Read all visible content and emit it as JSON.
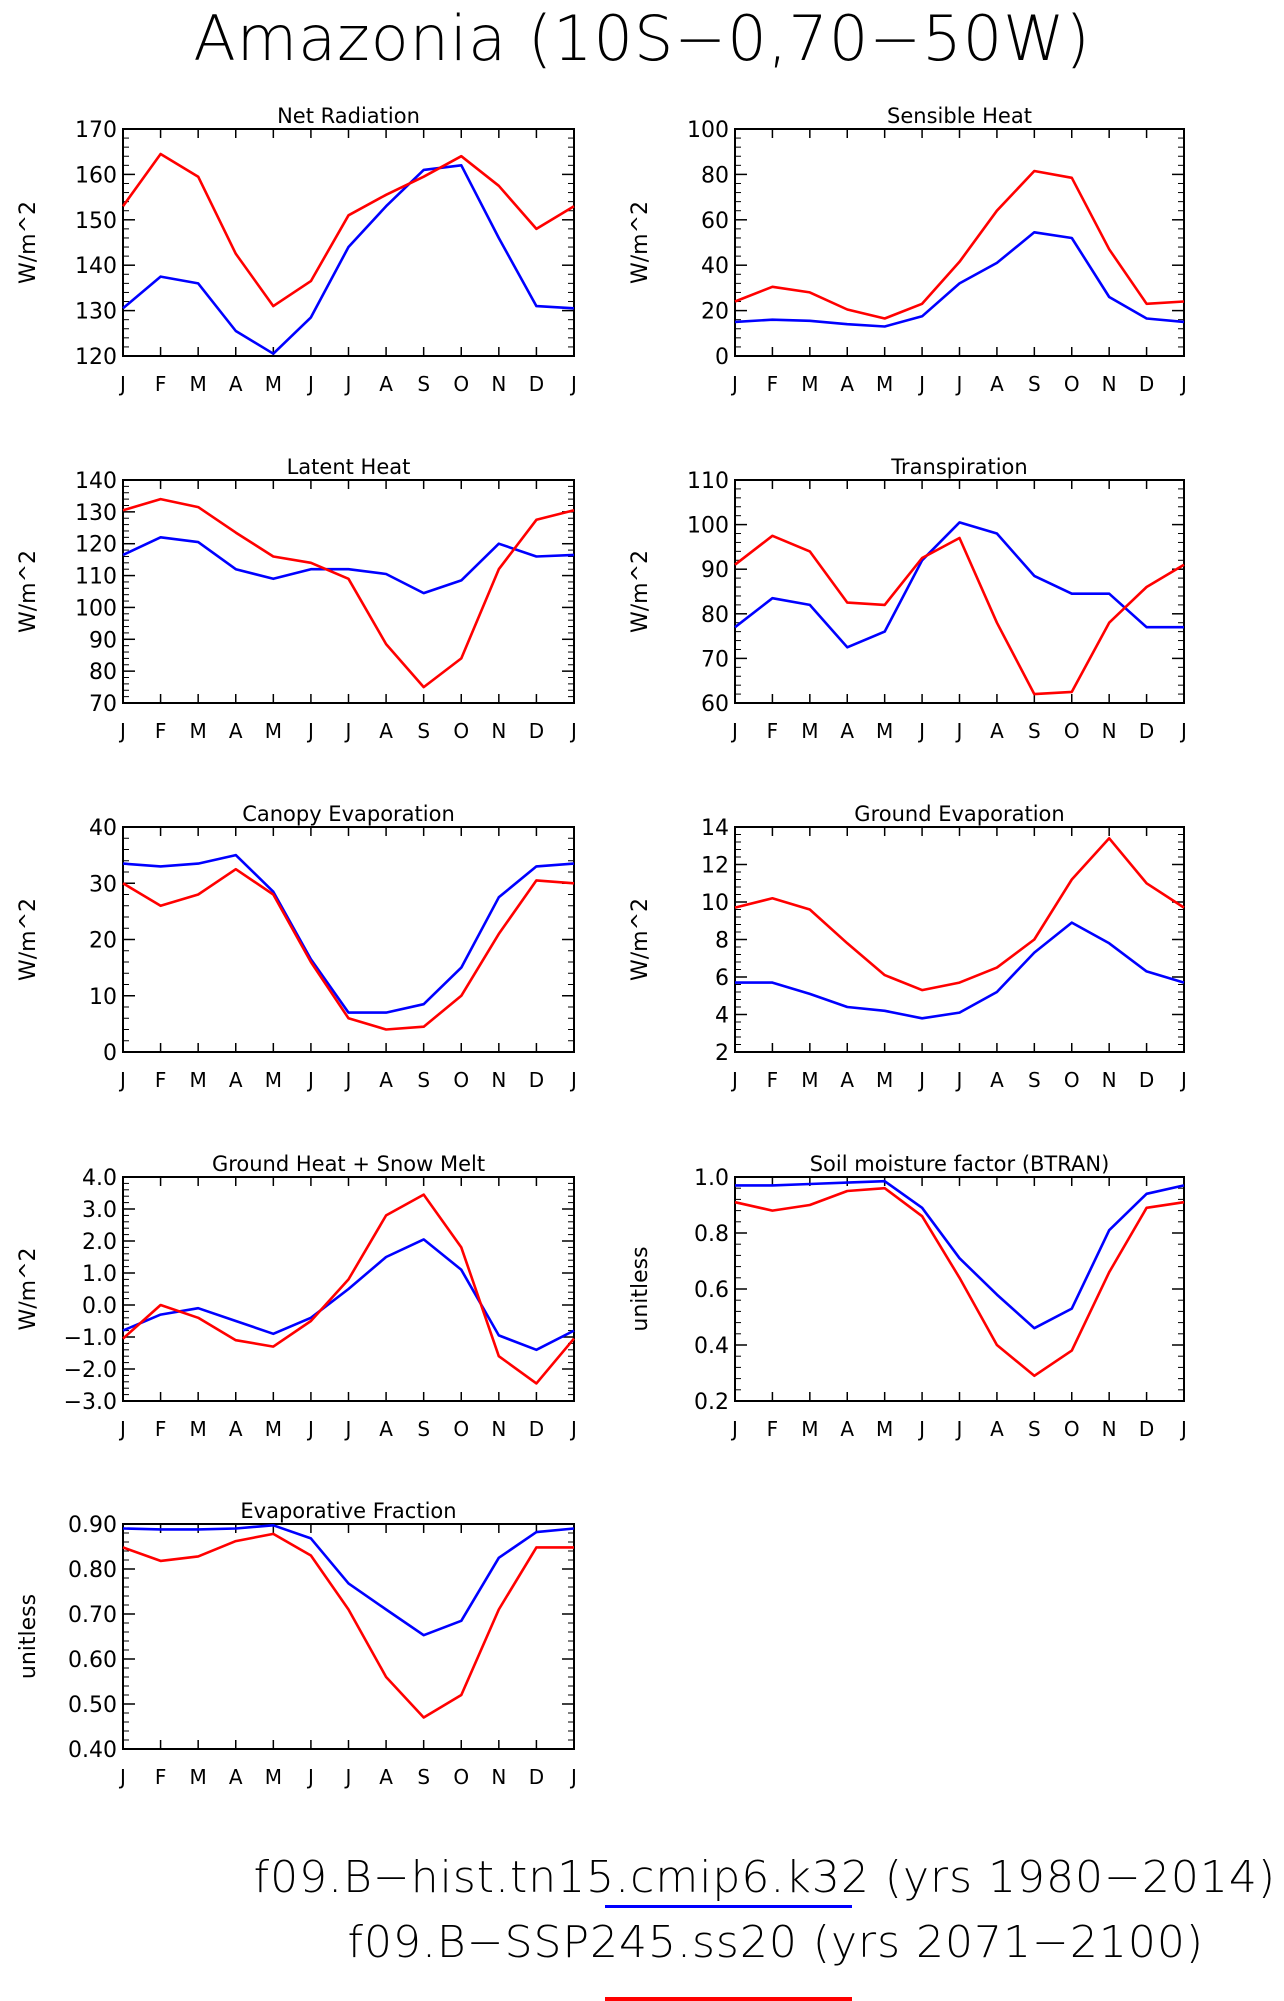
{
  "title": "Amazonia (10S−0,70−50W)",
  "legend": [
    {
      "label": "f09.B−hist.tn15.cmip6.k32 (yrs 1980−2014)",
      "color": "#0000ff"
    },
    {
      "label": "f09.B−SSP245.ss20 (yrs 2071−2100)",
      "color": "#ff0000"
    }
  ],
  "chart_data": [
    {
      "type": "line",
      "title": "Net Radiation",
      "ylabel": "W/m^2",
      "categories": [
        "J",
        "F",
        "M",
        "A",
        "M",
        "J",
        "J",
        "A",
        "S",
        "O",
        "N",
        "D",
        "J"
      ],
      "ylim": [
        120,
        170
      ],
      "yticks": [
        "120",
        "130",
        "140",
        "150",
        "160",
        "170"
      ],
      "series": [
        {
          "color": "#0000ff",
          "values": [
            130.5,
            137.5,
            136,
            125.5,
            120.5,
            128.5,
            144,
            153,
            161,
            162,
            146,
            131,
            130.5
          ]
        },
        {
          "color": "#ff0000",
          "values": [
            153,
            164.5,
            159.5,
            142.5,
            131,
            136.5,
            151,
            155.5,
            159.5,
            164,
            157.5,
            148,
            153
          ]
        }
      ]
    },
    {
      "type": "line",
      "title": "Sensible Heat",
      "ylabel": "W/m^2",
      "categories": [
        "J",
        "F",
        "M",
        "A",
        "M",
        "J",
        "J",
        "A",
        "S",
        "O",
        "N",
        "D",
        "J"
      ],
      "ylim": [
        0,
        100
      ],
      "yticks": [
        "0",
        "20",
        "40",
        "60",
        "80",
        "100"
      ],
      "series": [
        {
          "color": "#0000ff",
          "values": [
            15,
            16,
            15.5,
            14,
            13,
            17.5,
            32,
            41,
            54.5,
            52,
            26,
            16.5,
            15
          ]
        },
        {
          "color": "#ff0000",
          "values": [
            24,
            30.5,
            28,
            20.5,
            16.5,
            23,
            41.5,
            64,
            81.5,
            78.5,
            47,
            23,
            24
          ]
        }
      ]
    },
    {
      "type": "line",
      "title": "Latent Heat",
      "ylabel": "W/m^2",
      "categories": [
        "J",
        "F",
        "M",
        "A",
        "M",
        "J",
        "J",
        "A",
        "S",
        "O",
        "N",
        "D",
        "J"
      ],
      "ylim": [
        70,
        140
      ],
      "yticks": [
        "70",
        "80",
        "90",
        "100",
        "110",
        "120",
        "130",
        "140"
      ],
      "series": [
        {
          "color": "#0000ff",
          "values": [
            116.5,
            122,
            120.5,
            112,
            109,
            112,
            112,
            110.5,
            104.5,
            108.5,
            120,
            116,
            116.5
          ]
        },
        {
          "color": "#ff0000",
          "values": [
            130.5,
            134,
            131.5,
            123.5,
            116,
            114,
            109,
            88.5,
            75,
            84,
            112,
            127.5,
            130.5
          ]
        }
      ]
    },
    {
      "type": "line",
      "title": "Transpiration",
      "ylabel": "W/m^2",
      "categories": [
        "J",
        "F",
        "M",
        "A",
        "M",
        "J",
        "J",
        "A",
        "S",
        "O",
        "N",
        "D",
        "J"
      ],
      "ylim": [
        60,
        110
      ],
      "yticks": [
        "60",
        "70",
        "80",
        "90",
        "100",
        "110"
      ],
      "series": [
        {
          "color": "#0000ff",
          "values": [
            77,
            83.5,
            82,
            72.5,
            76,
            92,
            100.5,
            98,
            88.5,
            84.5,
            84.5,
            77,
            77
          ]
        },
        {
          "color": "#ff0000",
          "values": [
            91,
            97.5,
            94,
            82.5,
            82,
            92.5,
            97,
            78,
            62,
            62.5,
            78,
            86,
            91
          ]
        }
      ]
    },
    {
      "type": "line",
      "title": "Canopy Evaporation",
      "ylabel": "W/m^2",
      "categories": [
        "J",
        "F",
        "M",
        "A",
        "M",
        "J",
        "J",
        "A",
        "S",
        "O",
        "N",
        "D",
        "J"
      ],
      "ylim": [
        0,
        40
      ],
      "yticks": [
        "0",
        "10",
        "20",
        "30",
        "40"
      ],
      "series": [
        {
          "color": "#0000ff",
          "values": [
            33.5,
            33,
            33.5,
            35,
            28.5,
            16.5,
            7,
            7,
            8.5,
            15,
            27.5,
            33,
            33.5
          ]
        },
        {
          "color": "#ff0000",
          "values": [
            30,
            26,
            28,
            32.5,
            28,
            16,
            6,
            4,
            4.5,
            10,
            21,
            30.5,
            30
          ]
        }
      ]
    },
    {
      "type": "line",
      "title": "Ground Evaporation",
      "ylabel": "W/m^2",
      "categories": [
        "J",
        "F",
        "M",
        "A",
        "M",
        "J",
        "J",
        "A",
        "S",
        "O",
        "N",
        "D",
        "J"
      ],
      "ylim": [
        2,
        14
      ],
      "yticks": [
        "2",
        "4",
        "6",
        "8",
        "10",
        "12",
        "14"
      ],
      "series": [
        {
          "color": "#0000ff",
          "values": [
            5.7,
            5.7,
            5.1,
            4.4,
            4.2,
            3.8,
            4.1,
            5.2,
            7.3,
            8.9,
            7.8,
            6.3,
            5.7
          ]
        },
        {
          "color": "#ff0000",
          "values": [
            9.7,
            10.2,
            9.6,
            7.8,
            6.1,
            5.3,
            5.7,
            6.5,
            8,
            11.2,
            13.4,
            11,
            9.7
          ]
        }
      ]
    },
    {
      "type": "line",
      "title": "Ground Heat + Snow Melt",
      "ylabel": "W/m^2",
      "categories": [
        "J",
        "F",
        "M",
        "A",
        "M",
        "J",
        "J",
        "A",
        "S",
        "O",
        "N",
        "D",
        "J"
      ],
      "ylim": [
        -3,
        4
      ],
      "yticks": [
        "−3.0",
        "−2.0",
        "−1.0",
        "0.0",
        "1.0",
        "2.0",
        "3.0",
        "4.0"
      ],
      "series": [
        {
          "color": "#0000ff",
          "values": [
            -0.8,
            -0.3,
            -0.1,
            -0.5,
            -0.9,
            -0.4,
            0.5,
            1.5,
            2.05,
            1.1,
            -0.95,
            -1.4,
            -0.8
          ]
        },
        {
          "color": "#ff0000",
          "values": [
            -1.05,
            0,
            -0.4,
            -1.1,
            -1.3,
            -0.5,
            0.8,
            2.8,
            3.45,
            1.8,
            -1.6,
            -2.45,
            -1.05
          ]
        }
      ]
    },
    {
      "type": "line",
      "title": "Soil moisture factor (BTRAN)",
      "ylabel": "unitless",
      "categories": [
        "J",
        "F",
        "M",
        "A",
        "M",
        "J",
        "J",
        "A",
        "S",
        "O",
        "N",
        "D",
        "J"
      ],
      "ylim": [
        0.2,
        1.0
      ],
      "yticks": [
        "0.2",
        "0.4",
        "0.6",
        "0.8",
        "1.0"
      ],
      "series": [
        {
          "color": "#0000ff",
          "values": [
            0.97,
            0.97,
            0.975,
            0.98,
            0.985,
            0.89,
            0.71,
            0.58,
            0.46,
            0.53,
            0.81,
            0.94,
            0.97
          ]
        },
        {
          "color": "#ff0000",
          "values": [
            0.91,
            0.88,
            0.9,
            0.95,
            0.96,
            0.86,
            0.64,
            0.4,
            0.29,
            0.38,
            0.66,
            0.89,
            0.91
          ]
        }
      ]
    },
    {
      "type": "line",
      "title": "Evaporative Fraction",
      "ylabel": "unitless",
      "categories": [
        "J",
        "F",
        "M",
        "A",
        "M",
        "J",
        "J",
        "A",
        "S",
        "O",
        "N",
        "D",
        "J"
      ],
      "ylim": [
        0.4,
        0.9
      ],
      "yticks": [
        "0.40",
        "0.50",
        "0.60",
        "0.70",
        "0.80",
        "0.90"
      ],
      "series": [
        {
          "color": "#0000ff",
          "values": [
            0.89,
            0.888,
            0.888,
            0.89,
            0.897,
            0.868,
            0.768,
            0.71,
            0.653,
            0.685,
            0.825,
            0.882,
            0.89
          ]
        },
        {
          "color": "#ff0000",
          "values": [
            0.848,
            0.818,
            0.828,
            0.862,
            0.878,
            0.83,
            0.71,
            0.56,
            0.47,
            0.52,
            0.71,
            0.848,
            0.848
          ]
        }
      ]
    }
  ]
}
